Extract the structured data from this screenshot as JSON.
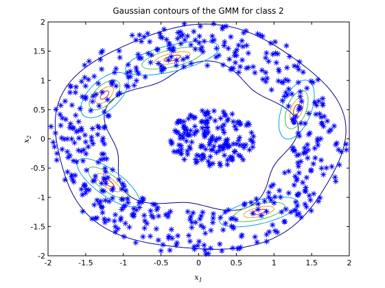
{
  "chart_data": {
    "type": "scatter",
    "title": "Gaussian contours of the GMM for class 2",
    "xlabel": {
      "base": "x",
      "sub": "1"
    },
    "ylabel": {
      "base": "x",
      "sub": "2"
    },
    "xlim": [
      -2,
      2
    ],
    "ylim": [
      -2,
      2
    ],
    "xticks": [
      "-2",
      "-1.5",
      "-1",
      "-0.5",
      "0",
      "0.5",
      "1",
      "1.5",
      "2"
    ],
    "yticks": [
      "-2",
      "-1.5",
      "-1",
      "-0.5",
      "0",
      "0.5",
      "1",
      "1.5",
      "2"
    ],
    "grid": false,
    "marker": "asterisk",
    "marker_color": "#0000ff",
    "contour_colors": [
      "#000080",
      "#00a0e0",
      "#40c040",
      "#e0a020",
      "#d02000"
    ],
    "center_cluster": {
      "center": [
        0.2,
        0.0
      ],
      "radius_x": 0.6,
      "radius_y": 0.5,
      "count": 170
    },
    "ring": {
      "center": [
        0.0,
        0.0
      ],
      "inner_radius": 1.25,
      "outer_radius": 1.98,
      "count": 560
    },
    "components": [
      {
        "mean": [
          -0.35,
          1.38
        ],
        "angle_deg": 18,
        "sx": 0.65,
        "sy": 0.22
      },
      {
        "mean": [
          1.3,
          0.5
        ],
        "angle_deg": 75,
        "sx": 0.52,
        "sy": 0.2
      },
      {
        "mean": [
          -1.2,
          -0.75
        ],
        "angle_deg": -45,
        "sx": 0.55,
        "sy": 0.2
      },
      {
        "mean": [
          0.8,
          -1.25
        ],
        "angle_deg": 18,
        "sx": 0.55,
        "sy": 0.2
      },
      {
        "mean": [
          -1.25,
          0.75
        ],
        "angle_deg": 55,
        "sx": 0.45,
        "sy": 0.22
      }
    ]
  }
}
